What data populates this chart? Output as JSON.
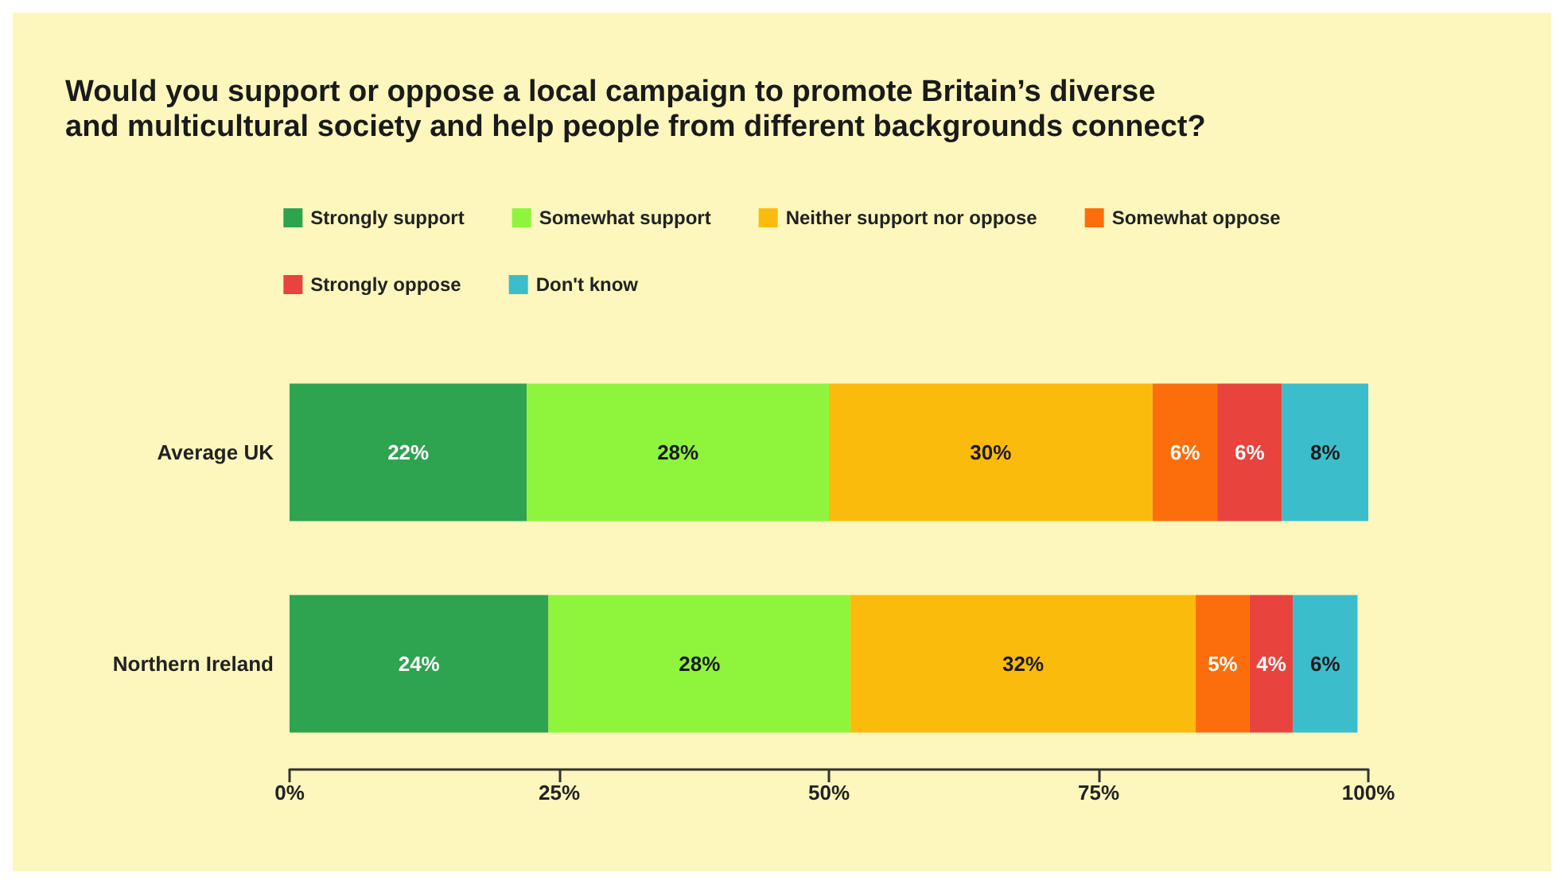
{
  "chart_data": {
    "type": "bar",
    "orientation": "horizontal",
    "stacked": true,
    "title": "Would you support or oppose a local campaign to promote Britain’s diverse and multicultural society and help people from different backgrounds connect?",
    "categories": [
      "Average UK",
      "Northern Ireland"
    ],
    "series": [
      {
        "name": "Strongly support",
        "color": "#2ea350",
        "values": [
          22,
          24
        ],
        "value_labels": [
          "22%",
          "24%"
        ]
      },
      {
        "name": "Somewhat support",
        "color": "#8ff53c",
        "values": [
          28,
          28
        ],
        "value_labels": [
          "28%",
          "28%"
        ]
      },
      {
        "name": "Neither support nor oppose",
        "color": "#fbbb0d",
        "values": [
          30,
          32
        ],
        "value_labels": [
          "30%",
          "32%"
        ]
      },
      {
        "name": "Somewhat oppose",
        "color": "#fb6e0b",
        "values": [
          6,
          5
        ],
        "value_labels": [
          "6%",
          "5%"
        ]
      },
      {
        "name": "Strongly oppose",
        "color": "#e8433d",
        "values": [
          6,
          4
        ],
        "value_labels": [
          "6%",
          "4%"
        ]
      },
      {
        "name": "Don't know",
        "color": "#3cbdcb",
        "values": [
          8,
          6
        ],
        "value_labels": [
          "8%",
          "6%"
        ]
      }
    ],
    "xlim": [
      0,
      100
    ],
    "xticks": [
      {
        "value": 0,
        "label": "0%"
      },
      {
        "value": 25,
        "label": "25%"
      },
      {
        "value": 50,
        "label": "50%"
      },
      {
        "value": 75,
        "label": "75%"
      },
      {
        "value": 100,
        "label": "100%"
      }
    ],
    "grid": false,
    "legend": "top"
  }
}
